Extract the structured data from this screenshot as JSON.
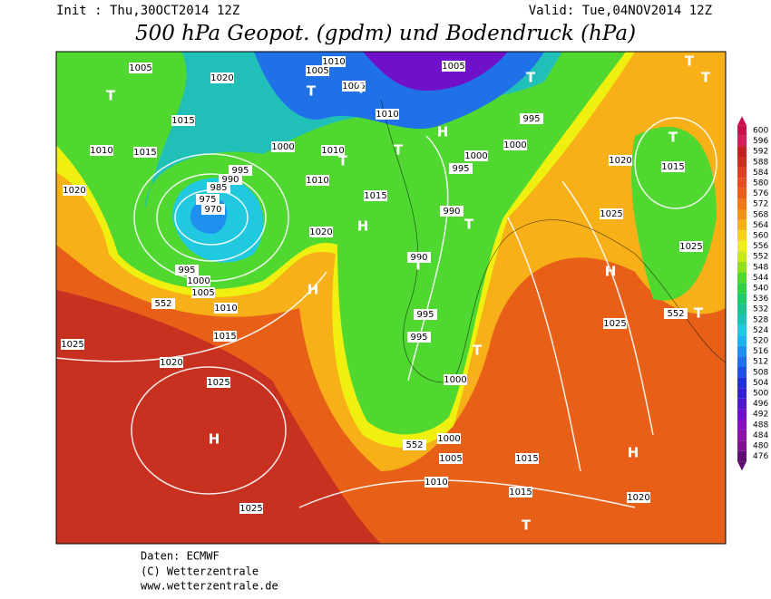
{
  "header": {
    "init": "Init : Thu,30OCT2014 12Z",
    "valid": "Valid: Tue,04NOV2014 12Z",
    "title": "500 hPa Geopot. (gpdm) und Bodendruck (hPa)"
  },
  "footer": {
    "lines": [
      "Daten: ECMWF",
      "(C) Wetterzentrale",
      "www.wetterzentrale.de"
    ]
  },
  "legend": {
    "labels": [
      600,
      596,
      592,
      588,
      584,
      580,
      576,
      572,
      568,
      564,
      560,
      556,
      552,
      548,
      544,
      540,
      536,
      532,
      528,
      524,
      520,
      516,
      512,
      508,
      504,
      500,
      496,
      492,
      488,
      484,
      480,
      476
    ],
    "colors": [
      "#c8104a",
      "#d0205a",
      "#c02020",
      "#c83020",
      "#d84020",
      "#e05020",
      "#e86018",
      "#f07818",
      "#f59018",
      "#f8b018",
      "#f8d018",
      "#f0f010",
      "#c8e818",
      "#90e020",
      "#50d830",
      "#30d040",
      "#20c868",
      "#20c090",
      "#20c0b8",
      "#20c8e0",
      "#20b0f0",
      "#2090f0",
      "#2070e8",
      "#2050e0",
      "#2030d8",
      "#3020d0",
      "#5018c8",
      "#7010c8",
      "#8810c0",
      "#9010a8",
      "#801090",
      "#601070"
    ]
  },
  "map_labels": [
    "1005",
    "1005",
    "1005",
    "1010",
    "1010",
    "1005",
    "1020",
    "1015",
    "1015",
    "1010",
    "1020",
    "995",
    "1000",
    "1000",
    "1010",
    "1010",
    "995",
    "990",
    "985",
    "975",
    "970",
    "1015",
    "1020",
    "990",
    "995",
    "1000",
    "990",
    "1025",
    "1020",
    "1015",
    "1025",
    "1025",
    "552",
    "552",
    "552",
    "995",
    "1000",
    "1005",
    "1010",
    "1015",
    "1025",
    "1020",
    "1025",
    "995",
    "995",
    "1000",
    "1000",
    "1005",
    "1015",
    "1010",
    "1015",
    "1020",
    "1025",
    "T",
    "T",
    "T",
    "T",
    "T",
    "T",
    "T",
    "T",
    "T",
    "T",
    "T",
    "T",
    "T",
    "T",
    "H",
    "H",
    "H",
    "H",
    "H",
    "H"
  ]
}
